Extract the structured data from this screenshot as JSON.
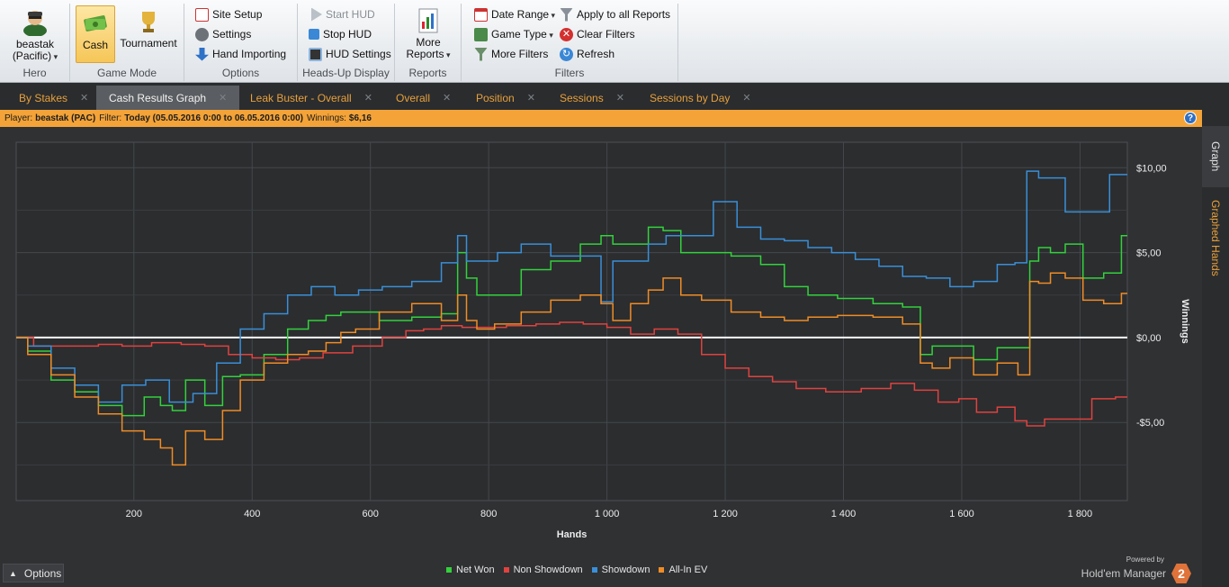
{
  "ribbon": {
    "hero": {
      "name": "beastak",
      "site": "(Pacific)",
      "group": "Hero"
    },
    "game_mode": {
      "cash": "Cash",
      "tournament": "Tournament",
      "group": "Game Mode"
    },
    "options": {
      "site_setup": "Site Setup",
      "settings": "Settings",
      "hand_importing": "Hand Importing",
      "group": "Options"
    },
    "hud": {
      "start": "Start HUD",
      "stop": "Stop HUD",
      "settings": "HUD Settings",
      "group": "Heads-Up Display"
    },
    "reports": {
      "more_line1": "More",
      "more_line2": "Reports",
      "group": "Reports"
    },
    "filters": {
      "date_range": "Date Range",
      "game_type": "Game Type",
      "more_filters": "More Filters",
      "apply_all": "Apply to all Reports",
      "clear": "Clear Filters",
      "refresh": "Refresh",
      "group": "Filters"
    }
  },
  "tabs": [
    {
      "label": "By Stakes"
    },
    {
      "label": "Cash Results Graph"
    },
    {
      "label": "Leak Buster - Overall"
    },
    {
      "label": "Overall"
    },
    {
      "label": "Position"
    },
    {
      "label": "Sessions"
    },
    {
      "label": "Sessions by Day"
    }
  ],
  "infobar": {
    "player_label": "Player:",
    "player": "beastak (PAC)",
    "filter_label": "Filter:",
    "filter": "Today (05.05.2016 0:00 to 06.05.2016 0:00)",
    "winnings_label": "Winnings:",
    "winnings": "$6,16"
  },
  "side_tabs": {
    "graph": "Graph",
    "graphed_hands": "Graphed Hands"
  },
  "footer": {
    "options": "Options",
    "powered_by": "Powered by",
    "brand": "Hold'em Manager",
    "brand_logo": "2"
  },
  "colors": {
    "net_won": "#33d23c",
    "non_showdown": "#e0423f",
    "showdown": "#3a8fd8",
    "all_in_ev": "#f08c26",
    "zero": "#ffffff"
  },
  "chart_data": {
    "type": "line",
    "xlabel": "Hands",
    "ylabel": "Winnings",
    "xlim": [
      1,
      1880
    ],
    "ylim": [
      -9.6,
      11.5
    ],
    "x_ticks": [
      200,
      400,
      600,
      800,
      1000,
      1200,
      1400,
      1600,
      1800
    ],
    "x_tick_labels": [
      "200",
      "400",
      "600",
      "800",
      "1 000",
      "1 200",
      "1 400",
      "1 600",
      "1 800"
    ],
    "y_ticks": [
      10,
      5,
      0,
      -5
    ],
    "y_tick_labels": [
      "$10,00",
      "$5,00",
      "$0,00",
      "-$5,00"
    ],
    "grid": true,
    "legend_position": "bottom-center",
    "series": [
      {
        "name": "Net Won",
        "color": "#33d23c",
        "x": [
          1,
          40,
          80,
          120,
          160,
          200,
          235,
          255,
          275,
          300,
          340,
          360,
          400,
          440,
          480,
          510,
          540,
          560,
          590,
          640,
          700,
          740,
          755,
          770,
          790,
          830,
          880,
          930,
          980,
          1000,
          1020,
          1060,
          1080,
          1110,
          1140,
          1180,
          1240,
          1280,
          1320,
          1360,
          1420,
          1480,
          1520,
          1540,
          1560,
          1600,
          1640,
          1680,
          1710,
          1720,
          1740,
          1760,
          1790,
          1820,
          1860,
          1880
        ],
        "y": [
          0,
          -0.8,
          -2.5,
          -3.2,
          -4.0,
          -4.6,
          -3.5,
          -4.0,
          -4.3,
          -2.5,
          -4.0,
          -2.3,
          -2.2,
          -1.0,
          0.5,
          1.0,
          1.3,
          1.5,
          1.5,
          1.0,
          1.2,
          1.4,
          5.0,
          3.5,
          2.5,
          2.5,
          4.0,
          4.5,
          5.5,
          6.0,
          5.5,
          5.5,
          6.5,
          6.3,
          5.0,
          5.0,
          4.8,
          4.3,
          3.0,
          2.5,
          2.3,
          2.0,
          1.8,
          -1.0,
          -0.5,
          -0.5,
          -1.3,
          -0.6,
          -0.6,
          4.5,
          5.3,
          5.0,
          5.5,
          3.5,
          3.8,
          6.0
        ]
      },
      {
        "name": "Non Showdown",
        "color": "#e0423f",
        "x": [
          1,
          60,
          120,
          160,
          200,
          260,
          300,
          340,
          380,
          420,
          460,
          500,
          540,
          600,
          640,
          680,
          700,
          740,
          770,
          800,
          860,
          900,
          940,
          980,
          1020,
          1060,
          1100,
          1140,
          1180,
          1220,
          1260,
          1300,
          1340,
          1400,
          1460,
          1500,
          1540,
          1580,
          1610,
          1640,
          1680,
          1700,
          1720,
          1760,
          1800,
          1840,
          1880
        ],
        "y": [
          0,
          -0.5,
          -0.5,
          -0.4,
          -0.5,
          -0.3,
          -0.4,
          -0.5,
          -1.0,
          -1.2,
          -1.3,
          -1.2,
          -0.9,
          -0.5,
          0,
          0.4,
          0.5,
          0.7,
          0.6,
          0.6,
          0.7,
          0.8,
          0.9,
          0.8,
          0.6,
          0.2,
          0.5,
          0.2,
          -1.0,
          -1.8,
          -2.3,
          -2.6,
          -3.0,
          -3.2,
          -3.0,
          -2.7,
          -3.1,
          -3.8,
          -3.6,
          -4.4,
          -4.1,
          -4.9,
          -5.2,
          -4.8,
          -4.8,
          -3.6,
          -3.5
        ]
      },
      {
        "name": "Showdown",
        "color": "#3a8fd8",
        "x": [
          1,
          40,
          80,
          120,
          160,
          200,
          240,
          280,
          320,
          360,
          400,
          440,
          480,
          520,
          560,
          600,
          640,
          700,
          740,
          755,
          770,
          800,
          830,
          880,
          930,
          980,
          1000,
          1020,
          1060,
          1080,
          1120,
          1160,
          1200,
          1240,
          1280,
          1320,
          1360,
          1400,
          1440,
          1480,
          1520,
          1560,
          1600,
          1640,
          1680,
          1700,
          1720,
          1740,
          1760,
          1790,
          1820,
          1880
        ],
        "y": [
          0,
          -0.5,
          -1.8,
          -2.8,
          -3.8,
          -2.8,
          -2.5,
          -3.8,
          -3.3,
          -1.5,
          0.5,
          1.4,
          2.5,
          3.0,
          2.5,
          2.8,
          3.0,
          3.3,
          4.4,
          6.0,
          4.5,
          4.5,
          5.0,
          5.5,
          4.8,
          4.8,
          2.1,
          4.5,
          4.5,
          5.5,
          6.0,
          6.0,
          8.0,
          6.5,
          5.8,
          5.7,
          5.3,
          5.0,
          4.6,
          4.2,
          3.6,
          3.5,
          3.0,
          3.3,
          4.3,
          4.4,
          9.8,
          9.4,
          9.4,
          7.4,
          7.4,
          9.6
        ]
      },
      {
        "name": "All-In EV",
        "color": "#f08c26",
        "x": [
          1,
          40,
          80,
          120,
          160,
          200,
          235,
          255,
          275,
          300,
          340,
          360,
          400,
          440,
          480,
          510,
          540,
          560,
          590,
          640,
          700,
          740,
          755,
          770,
          790,
          830,
          880,
          930,
          980,
          1000,
          1020,
          1060,
          1080,
          1110,
          1140,
          1180,
          1240,
          1280,
          1320,
          1360,
          1420,
          1480,
          1520,
          1540,
          1560,
          1600,
          1640,
          1680,
          1710,
          1720,
          1740,
          1760,
          1790,
          1820,
          1860,
          1880
        ],
        "y": [
          0,
          -1.0,
          -2.2,
          -3.5,
          -4.5,
          -5.5,
          -6.0,
          -6.5,
          -7.5,
          -5.5,
          -6.0,
          -4.3,
          -2.5,
          -1.5,
          -1.0,
          -0.8,
          -0.3,
          0.3,
          0.5,
          1.5,
          2.0,
          1.0,
          2.5,
          1.0,
          0.5,
          0.8,
          1.5,
          2.2,
          2.5,
          2.0,
          1.0,
          2.0,
          2.8,
          3.5,
          2.5,
          2.2,
          1.5,
          1.2,
          1.0,
          1.2,
          1.3,
          1.2,
          0.8,
          -1.5,
          -1.8,
          -1.2,
          -2.2,
          -1.5,
          -2.2,
          3.3,
          3.2,
          3.8,
          3.5,
          2.2,
          2.0,
          2.6
        ]
      }
    ]
  }
}
